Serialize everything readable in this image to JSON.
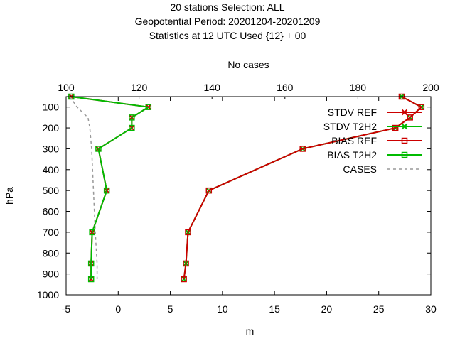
{
  "chart_data": {
    "type": "line",
    "title_lines": [
      "20 stations Selection: ALL",
      "Geopotential  Period: 20201204-20201209",
      "Statistics at 12 UTC  Used {12} + 00"
    ],
    "xlabel": "m",
    "ylabel": "hPa",
    "x2label": "No cases",
    "xlim": [
      -5,
      30
    ],
    "x2lim": [
      100,
      200
    ],
    "ylim": [
      1000,
      50
    ],
    "y_inverted": true,
    "xticks": [
      "-5",
      "0",
      "5",
      "10",
      "15",
      "20",
      "25",
      "30"
    ],
    "x2ticks": [
      "100",
      "120",
      "140",
      "160",
      "180",
      "200"
    ],
    "yticks": [
      "100",
      "200",
      "300",
      "400",
      "500",
      "600",
      "700",
      "800",
      "900",
      "1000"
    ],
    "legend_position": "top-right",
    "series": [
      {
        "name": "STDV REF",
        "color": "#cc0000",
        "marker": "x",
        "axis": "x",
        "points": [
          [
            -4.5,
            50
          ],
          [
            2.9,
            100
          ],
          [
            1.3,
            150
          ],
          [
            1.3,
            200
          ],
          [
            -1.9,
            300
          ],
          [
            -1.1,
            500
          ],
          [
            -2.5,
            700
          ],
          [
            -2.6,
            850
          ],
          [
            -2.6,
            925
          ]
        ]
      },
      {
        "name": "STDV T2H2",
        "color": "#00bb00",
        "marker": "x",
        "axis": "x",
        "points": [
          [
            27.2,
            50
          ],
          [
            29.1,
            100
          ],
          [
            28.0,
            150
          ],
          [
            26.6,
            200
          ],
          [
            17.7,
            300
          ],
          [
            8.7,
            500
          ],
          [
            6.7,
            700
          ],
          [
            6.5,
            850
          ],
          [
            6.3,
            925
          ]
        ]
      },
      {
        "name": "BIAS REF",
        "color": "#cc0000",
        "marker": "square",
        "axis": "x",
        "points": [
          [
            27.2,
            50
          ],
          [
            29.1,
            100
          ],
          [
            28.0,
            150
          ],
          [
            26.6,
            200
          ],
          [
            17.7,
            300
          ],
          [
            8.7,
            500
          ],
          [
            6.7,
            700
          ],
          [
            6.5,
            850
          ],
          [
            6.3,
            925
          ]
        ]
      },
      {
        "name": "BIAS T2H2",
        "color": "#00bb00",
        "marker": "square",
        "axis": "x",
        "points": [
          [
            -4.5,
            50
          ],
          [
            2.9,
            100
          ],
          [
            1.3,
            150
          ],
          [
            1.3,
            200
          ],
          [
            -1.9,
            300
          ],
          [
            -1.1,
            500
          ],
          [
            -2.5,
            700
          ],
          [
            -2.6,
            850
          ],
          [
            -2.6,
            925
          ]
        ]
      },
      {
        "name": "CASES",
        "color": "#999999",
        "marker": "none",
        "dashed": true,
        "axis": "x2",
        "points": [
          [
            101,
            50
          ],
          [
            103,
            100
          ],
          [
            106,
            150
          ],
          [
            106.5,
            200
          ],
          [
            107,
            300
          ],
          [
            107.5,
            500
          ],
          [
            108,
            700
          ],
          [
            108.5,
            850
          ],
          [
            108.5,
            925
          ]
        ]
      }
    ]
  }
}
